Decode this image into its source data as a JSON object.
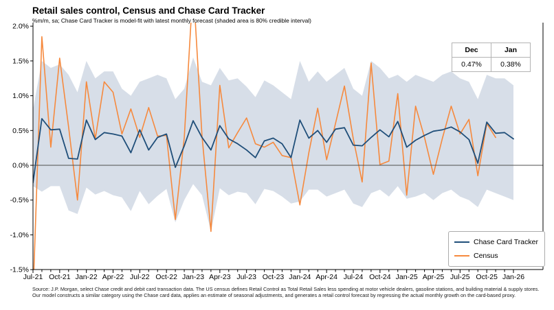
{
  "header": {
    "title": "Retail sales control, Census and Chase Card Tracker",
    "subtitle": "%m/m, sa; Chase Card Tracker is model-fit with latest monthly forecast (shaded area is 80% credible interval)"
  },
  "forecast_table": {
    "columns": [
      "Dec",
      "Jan"
    ],
    "values": [
      "0.47%",
      "0.38%"
    ]
  },
  "legend": [
    {
      "label": "Chase Card Tracker",
      "color": "#1F4E79"
    },
    {
      "label": "Census",
      "color": "#F6893D"
    }
  ],
  "source_note": "Source: J.P. Morgan, select Chase credit and debit card transaction data. The US census defines Retail Control as Total Retail Sales less spending at motor vehicle dealers, gasoline stations, and building material & supply stores. Our model constructs a similar category using the Chase card data, applies an estimate of seasonal adjustments, and generates a retail control forecast by regressing the actual monthly growth on the card-based proxy.",
  "chart_data": {
    "type": "line",
    "title": "Retail sales control, Census and Chase Card Tracker",
    "subtitle": "%m/m, sa; Chase Card Tracker is model-fit with latest monthly forecast (shaded area is 80% credible interval)",
    "ylim": [
      -1.5,
      2.0
    ],
    "yticks": [
      "2.0%",
      "1.5%",
      "1.0%",
      "0.5%",
      "0.0%",
      "-0.5%",
      "-1.0%",
      "-1.5%"
    ],
    "x_label_every": 3,
    "grid": false,
    "legend_position": "bottom-right",
    "zero_line": true,
    "categories": [
      "Jul-21",
      "Aug-21",
      "Sep-21",
      "Oct-21",
      "Nov-21",
      "Dec-21",
      "Jan-22",
      "Feb-22",
      "Mar-22",
      "Apr-22",
      "May-22",
      "Jun-22",
      "Jul-22",
      "Aug-22",
      "Sep-22",
      "Oct-22",
      "Nov-22",
      "Dec-22",
      "Jan-23",
      "Feb-23",
      "Mar-23",
      "Apr-23",
      "May-23",
      "Jun-23",
      "Jul-23",
      "Aug-23",
      "Sep-23",
      "Oct-23",
      "Nov-23",
      "Dec-23",
      "Jan-24",
      "Feb-24",
      "Mar-24",
      "Apr-24",
      "May-24",
      "Jun-24",
      "Jul-24",
      "Aug-24",
      "Sep-24",
      "Oct-24",
      "Nov-24",
      "Dec-24",
      "Jan-25",
      "Feb-25",
      "Mar-25",
      "Apr-25",
      "May-25",
      "Jun-25",
      "Jul-25",
      "Aug-25",
      "Sep-25",
      "Oct-25",
      "Nov-25",
      "Dec-25",
      "Jan-26"
    ],
    "series": [
      {
        "name": "Chase Card Tracker",
        "color": "#1F4E79",
        "width": 1.8,
        "values": [
          -0.25,
          0.67,
          0.51,
          0.52,
          0.1,
          0.09,
          0.65,
          0.37,
          0.47,
          0.45,
          0.42,
          0.18,
          0.51,
          0.22,
          0.4,
          0.45,
          -0.03,
          0.28,
          0.64,
          0.4,
          0.22,
          0.57,
          0.38,
          0.31,
          0.22,
          0.11,
          0.35,
          0.39,
          0.31,
          0.11,
          0.65,
          0.39,
          0.5,
          0.33,
          0.52,
          0.54,
          0.29,
          0.28,
          0.4,
          0.51,
          0.41,
          0.63,
          0.26,
          0.36,
          0.43,
          0.49,
          0.51,
          0.55,
          0.48,
          0.37,
          0.03,
          0.62,
          0.46,
          0.47,
          0.38
        ]
      },
      {
        "name": "Census",
        "color": "#F6893D",
        "width": 1.6,
        "values": [
          -1.9,
          1.85,
          0.26,
          1.54,
          0.55,
          -0.5,
          1.2,
          0.38,
          1.2,
          1.05,
          0.45,
          0.81,
          0.4,
          0.83,
          0.42,
          0.43,
          -0.78,
          0.4,
          2.6,
          0.42,
          -0.95,
          1.15,
          0.25,
          0.47,
          0.68,
          0.31,
          0.26,
          0.33,
          0.14,
          0.11,
          -0.57,
          0.18,
          0.82,
          0.08,
          0.6,
          1.14,
          0.38,
          -0.24,
          1.47,
          0.01,
          0.06,
          1.03,
          -0.43,
          0.85,
          0.4,
          -0.13,
          0.38,
          0.85,
          0.45,
          0.66,
          -0.15,
          0.6,
          0.4,
          null,
          null
        ]
      }
    ],
    "band": {
      "label": "80% credible interval",
      "color": "#D7DEE8",
      "upper": [
        0.8,
        1.5,
        1.4,
        1.45,
        1.3,
        1.05,
        1.5,
        1.25,
        1.35,
        1.35,
        1.1,
        1.0,
        1.2,
        1.25,
        1.3,
        1.25,
        0.95,
        1.1,
        1.55,
        1.2,
        1.15,
        1.4,
        1.22,
        1.25,
        1.13,
        0.98,
        1.22,
        1.15,
        1.05,
        0.95,
        1.5,
        1.2,
        1.35,
        1.2,
        1.3,
        1.4,
        1.1,
        1.0,
        1.5,
        1.4,
        1.25,
        1.3,
        1.2,
        1.3,
        1.25,
        1.2,
        1.3,
        1.35,
        1.25,
        1.2,
        0.95,
        1.3,
        1.25,
        1.25,
        1.15
      ],
      "lower": [
        -0.3,
        -0.38,
        -0.3,
        -0.3,
        -0.65,
        -0.7,
        -0.32,
        -0.42,
        -0.37,
        -0.43,
        -0.46,
        -0.66,
        -0.37,
        -0.56,
        -0.44,
        -0.34,
        -0.82,
        -0.5,
        -0.27,
        -0.43,
        -0.95,
        -0.33,
        -0.43,
        -0.38,
        -0.4,
        -0.56,
        -0.34,
        -0.37,
        -0.45,
        -0.55,
        -0.52,
        -0.35,
        -0.35,
        -0.45,
        -0.4,
        -0.35,
        -0.55,
        -0.6,
        -0.4,
        -0.35,
        -0.45,
        -0.3,
        -0.48,
        -0.45,
        -0.4,
        -0.5,
        -0.4,
        -0.35,
        -0.45,
        -0.5,
        -0.6,
        -0.35,
        -0.4,
        -0.45,
        -0.5
      ]
    }
  }
}
